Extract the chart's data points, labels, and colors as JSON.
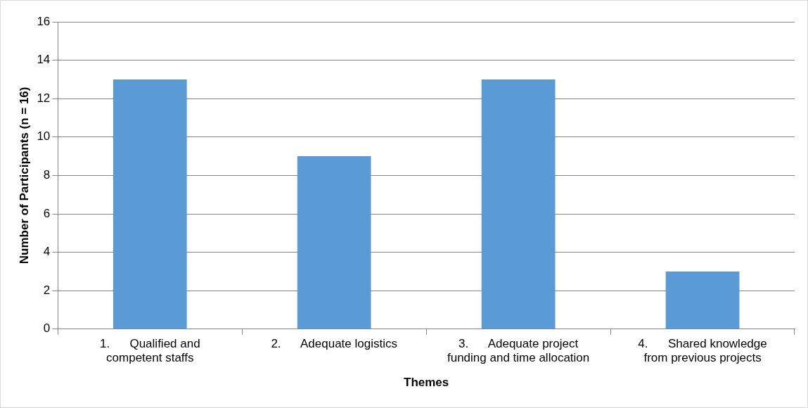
{
  "chart_data": {
    "type": "bar",
    "xlabel": "Themes",
    "ylabel": "Number of Participants (n = 16)",
    "categories": [
      "1.      Qualified and competent staffs",
      "2.      Adequate logistics",
      "3.      Adequate project funding and time allocation",
      "4.      Shared knowledge from previous projects"
    ],
    "values": [
      13,
      9,
      13,
      3
    ],
    "color": "#5b9bd5",
    "ylim": [
      0,
      16
    ],
    "yticks": [
      0,
      2,
      4,
      6,
      8,
      10,
      12,
      14,
      16
    ],
    "grid": "y",
    "legend": false
  }
}
